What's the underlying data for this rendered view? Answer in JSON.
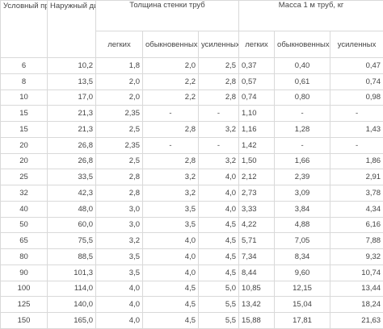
{
  "headers": {
    "nominal_bore": "Условный проход",
    "outer_diameter": "Наружный диаметр",
    "wall_thickness": "Толщина стенки труб",
    "mass": "Масса 1 м труб, кг",
    "light": "легких",
    "ordinary": "обыкновенных",
    "reinforced": "усиленных"
  },
  "rows": [
    [
      "6",
      "10,2",
      "1,8",
      "2,0",
      "2,5",
      "0,37",
      "0,40",
      "0,47"
    ],
    [
      "8",
      "13,5",
      "2,0",
      "2,2",
      "2,8",
      "0,57",
      "0,61",
      "0,74"
    ],
    [
      "10",
      "17,0",
      "2,0",
      "2,2",
      "2,8",
      "0,74",
      "0,80",
      "0,98"
    ],
    [
      "15",
      "21,3",
      "2,35",
      "-",
      "-",
      "1,10",
      "-",
      "-"
    ],
    [
      "15",
      "21,3",
      "2,5",
      "2,8",
      "3,2",
      "1,16",
      "1,28",
      "1,43"
    ],
    [
      "20",
      "26,8",
      "2,35",
      "-",
      "-",
      "1,42",
      "-",
      "-"
    ],
    [
      "20",
      "26,8",
      "2,5",
      "2,8",
      "3,2",
      "1,50",
      "1,66",
      "1,86"
    ],
    [
      "25",
      "33,5",
      "2,8",
      "3,2",
      "4,0",
      "2,12",
      "2,39",
      "2,91"
    ],
    [
      "32",
      "42,3",
      "2,8",
      "3,2",
      "4,0",
      "2,73",
      "3,09",
      "3,78"
    ],
    [
      "40",
      "48,0",
      "3,0",
      "3,5",
      "4,0",
      "3,33",
      "3,84",
      "4,34"
    ],
    [
      "50",
      "60,0",
      "3,0",
      "3,5",
      "4,5",
      "4,22",
      "4,88",
      "6,16"
    ],
    [
      "65",
      "75,5",
      "3,2",
      "4,0",
      "4,5",
      "5,71",
      "7,05",
      "7,88"
    ],
    [
      "80",
      "88,5",
      "3,5",
      "4,0",
      "4,5",
      "7,34",
      "8,34",
      "9,32"
    ],
    [
      "90",
      "101,3",
      "3,5",
      "4,0",
      "4,5",
      "8,44",
      "9,60",
      "10,74"
    ],
    [
      "100",
      "114,0",
      "4,0",
      "4,5",
      "5,0",
      "10,85",
      "12,15",
      "13,44"
    ],
    [
      "125",
      "140,0",
      "4,0",
      "4,5",
      "5,5",
      "13,42",
      "15,04",
      "18,24"
    ],
    [
      "150",
      "165,0",
      "4,0",
      "4,5",
      "5,5",
      "15,88",
      "17,81",
      "21,63"
    ]
  ]
}
